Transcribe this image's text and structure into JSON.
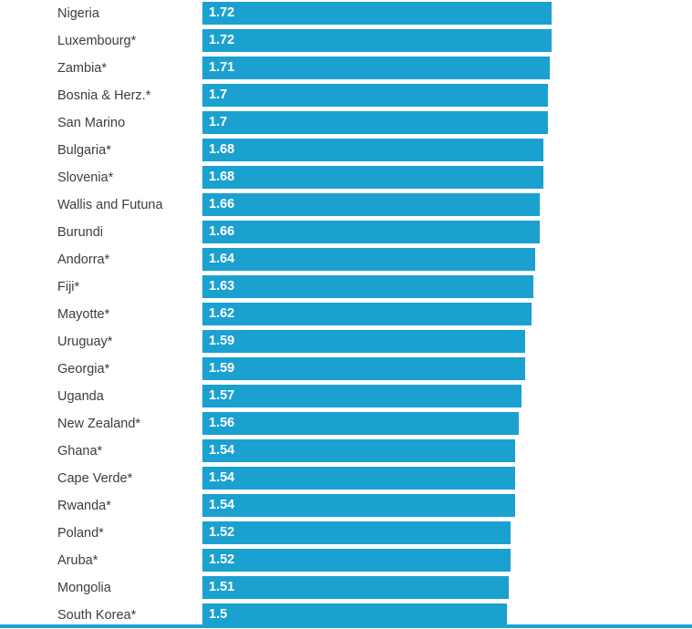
{
  "chart_data": {
    "type": "bar",
    "orientation": "horizontal",
    "title": "",
    "xlabel": "",
    "ylabel": "",
    "xlim": [
      0,
      1.72
    ],
    "bar_color": "#1ba1d0",
    "categories": [
      "Nigeria",
      "Luxembourg*",
      "Zambia*",
      "Bosnia & Herz.*",
      "San Marino",
      "Bulgaria*",
      "Slovenia*",
      "Wallis and Futuna",
      "Burundi",
      "Andorra*",
      "Fiji*",
      "Mayotte*",
      "Uruguay*",
      "Georgia*",
      "Uganda",
      "New Zealand*",
      "Ghana*",
      "Cape Verde*",
      "Rwanda*",
      "Poland*",
      "Aruba*",
      "Mongolia",
      "South Korea*"
    ],
    "values": [
      1.72,
      1.72,
      1.71,
      1.7,
      1.7,
      1.68,
      1.68,
      1.66,
      1.66,
      1.64,
      1.63,
      1.62,
      1.59,
      1.59,
      1.57,
      1.56,
      1.54,
      1.54,
      1.54,
      1.52,
      1.52,
      1.51,
      1.5
    ],
    "value_labels": [
      "1.72",
      "1.72",
      "1.71",
      "1.7",
      "1.7",
      "1.68",
      "1.68",
      "1.66",
      "1.66",
      "1.64",
      "1.63",
      "1.62",
      "1.59",
      "1.59",
      "1.57",
      "1.56",
      "1.54",
      "1.54",
      "1.54",
      "1.52",
      "1.52",
      "1.51",
      "1.5"
    ]
  }
}
